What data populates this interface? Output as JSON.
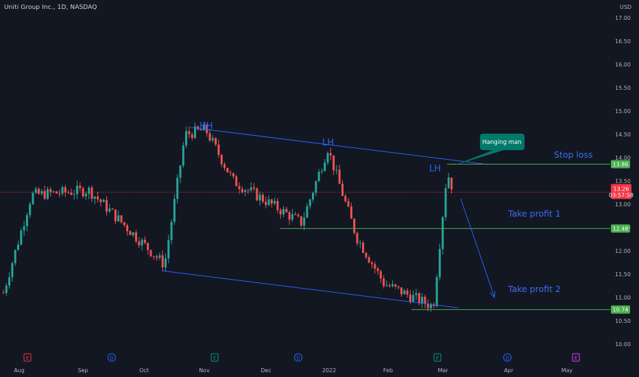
{
  "header": {
    "symbol_title": "Uniti Group Inc., 1D, NASDAQ",
    "currency": "USD"
  },
  "price_axis": {
    "ticks": [
      "17.00",
      "16.50",
      "16.00",
      "15.50",
      "15.00",
      "14.50",
      "14.00",
      "13.50",
      "13.00",
      "12.50",
      "12.00",
      "11.50",
      "11.00",
      "10.50",
      "10.00"
    ]
  },
  "time_axis": {
    "labels": [
      "Aug",
      "Sep",
      "Oct",
      "Nov",
      "Dec",
      "2022",
      "Feb",
      "Mar",
      "Apr",
      "May"
    ]
  },
  "events": [
    {
      "letter": "E",
      "color": "#f23645"
    },
    {
      "letter": "D",
      "color": "#2962ff"
    },
    {
      "letter": "E",
      "color": "#089981"
    },
    {
      "letter": "D",
      "color": "#2962ff"
    },
    {
      "letter": "E",
      "color": "#089981"
    },
    {
      "letter": "D",
      "color": "#2962ff"
    },
    {
      "letter": "E",
      "color": "#e040fb"
    }
  ],
  "price_tags": {
    "stop_loss": "13.86",
    "current_price": "13.26",
    "countdown": "03:57:58",
    "take_profit_1": "12.48",
    "take_profit_2": "10.74"
  },
  "annotations": {
    "hh": "HH",
    "lh_1": "LH",
    "lh_2": "LH",
    "hanging_man": "Hanging man",
    "stop_loss": "Stop loss",
    "take_profit_1": "Take profit 1",
    "take_profit_2": "Take profit 2"
  },
  "colors": {
    "background": "#131722",
    "up_candle": "#26a69a",
    "down_candle": "#ef5350",
    "trendline": "#2962ff",
    "level_line": "#4caf50",
    "current_price": "#f23645",
    "callout": "#00796b"
  },
  "chart_data": {
    "type": "candlestick",
    "series_name": "",
    "y_unit": "USD",
    "ylim": [
      9.7,
      17.2
    ],
    "x_labels": [
      "Aug",
      "Sep",
      "Oct",
      "Nov",
      "Dec",
      "2022",
      "Feb",
      "Mar",
      "Apr",
      "May"
    ],
    "ohlc_keypoints": [
      {
        "approx_date": "Jul-end",
        "close": 11.1
      },
      {
        "approx_date": "Aug-early",
        "close": 13.2
      },
      {
        "approx_date": "Sep-early",
        "close": 13.3
      },
      {
        "approx_date": "Oct-mid",
        "close": 11.7
      },
      {
        "approx_date": "Oct-late",
        "close": 14.5
      },
      {
        "approx_date": "Nov-early",
        "close": 14.6
      },
      {
        "approx_date": "Nov-late",
        "close": 13.5
      },
      {
        "approx_date": "Dec-mid",
        "close": 12.6
      },
      {
        "approx_date": "2022-early",
        "close": 14.2
      },
      {
        "approx_date": "Jan-late",
        "close": 12.3
      },
      {
        "approx_date": "Feb-mid",
        "close": 11.3
      },
      {
        "approx_date": "Feb-late",
        "close": 10.8
      },
      {
        "approx_date": "Mar-early",
        "close": 13.7
      },
      {
        "approx_date": "Mar-current",
        "close": 13.26
      }
    ],
    "levels": {
      "stop_loss": 13.86,
      "take_profit_1": 12.48,
      "take_profit_2": 10.74,
      "current": 13.26
    },
    "grid": false,
    "legend": "none"
  }
}
